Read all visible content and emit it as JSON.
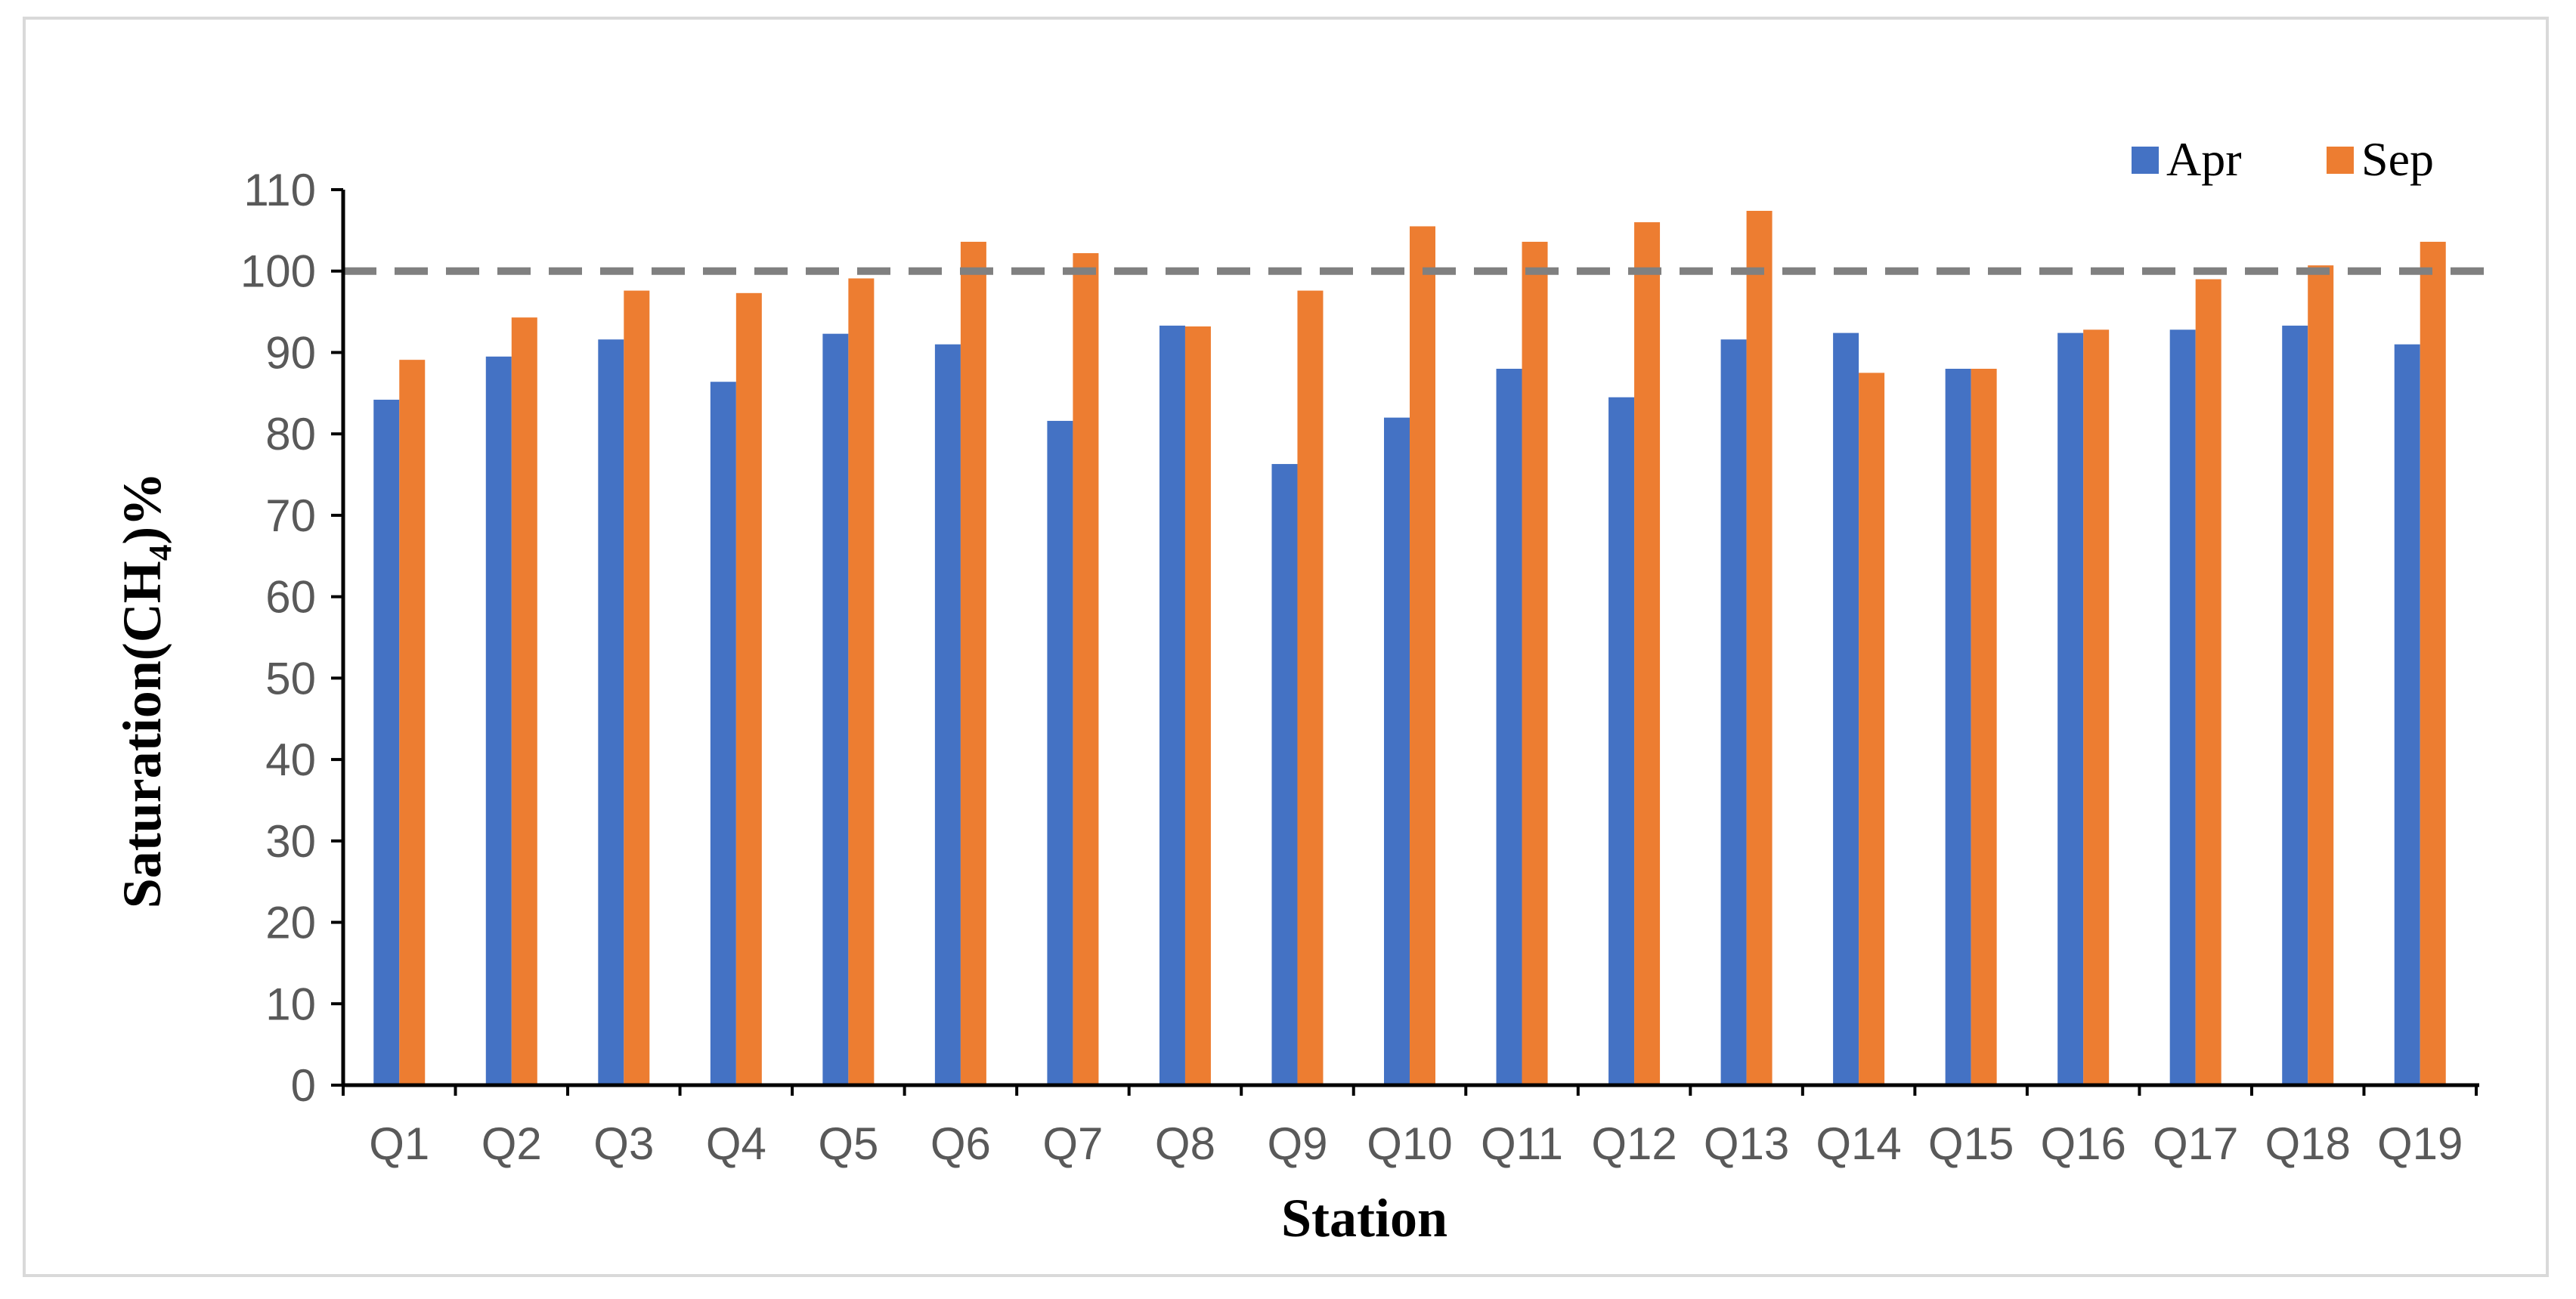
{
  "chart_data": {
    "type": "bar",
    "title": "",
    "xlabel": "Station",
    "ylabel": "Saturation(CH₄)%",
    "ylim": [
      0,
      110
    ],
    "yticks": [
      0,
      10,
      20,
      30,
      40,
      50,
      60,
      70,
      80,
      90,
      100,
      110
    ],
    "categories": [
      "Q1",
      "Q2",
      "Q3",
      "Q4",
      "Q5",
      "Q6",
      "Q7",
      "Q8",
      "Q9",
      "Q10",
      "Q11",
      "Q12",
      "Q13",
      "Q14",
      "Q15",
      "Q16",
      "Q17",
      "Q18",
      "Q19"
    ],
    "series": [
      {
        "name": "Apr",
        "color": "#4472C4",
        "values": [
          84.2,
          89.5,
          91.6,
          86.4,
          92.3,
          91.0,
          81.6,
          93.3,
          76.3,
          82.0,
          88.0,
          84.5,
          91.6,
          92.4,
          88.0,
          92.4,
          92.8,
          93.3,
          91.0
        ]
      },
      {
        "name": "Sep",
        "color": "#ED7D31",
        "values": [
          89.1,
          94.3,
          97.6,
          97.3,
          99.1,
          103.6,
          102.2,
          93.2,
          97.6,
          105.5,
          103.6,
          106.0,
          107.4,
          87.5,
          88.0,
          92.8,
          99.0,
          100.7,
          103.6
        ]
      }
    ],
    "reference_line": {
      "value": 100,
      "style": "dashed",
      "color": "#808080"
    },
    "legend": {
      "placement": "top-right"
    },
    "grid": false
  }
}
